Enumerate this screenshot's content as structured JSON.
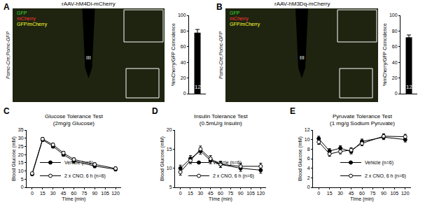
{
  "images": [
    {
      "panel": "A",
      "type": "image",
      "title": "rAAV-hM4Di-mCherry",
      "side_label": "Pomc-Cre;Pomc-GFP",
      "channels": [
        {
          "name": "GFP",
          "color": "#33dd33"
        },
        {
          "name": "mCherry",
          "color": "#ff3333"
        },
        {
          "name": "GFP/mCherry",
          "color": "#ffff33"
        }
      ],
      "region_label": "III"
    },
    {
      "panel": "B",
      "type": "image",
      "title": "rAAV-hM3Dq-mCherry",
      "side_label": "Pomc-Cre;Pomc-GFP",
      "channels": [
        {
          "name": "GFP",
          "color": "#33dd33"
        },
        {
          "name": "mCherry",
          "color": "#ff3333"
        },
        {
          "name": "GFP/mCherry",
          "color": "#ffff33"
        }
      ],
      "region_label": "III"
    }
  ],
  "chart_data": [
    {
      "type": "bar",
      "categories": [
        null
      ],
      "values": [
        78
      ],
      "errors": [
        4
      ],
      "color": "#000000",
      "y_label": "%mCherry/GFP Coincidence",
      "ylim": [
        0,
        100
      ],
      "yticks": [
        0,
        20,
        40,
        60,
        80,
        100
      ],
      "annotations": [
        "12"
      ],
      "tick_labels": "y",
      "grid": false
    },
    {
      "type": "bar",
      "categories": [
        null
      ],
      "values": [
        72
      ],
      "errors": [
        3
      ],
      "color": "#000000",
      "y_label": "%mCherry/GFP Coincidence",
      "ylim": [
        0,
        100
      ],
      "yticks": [
        0,
        20,
        40,
        60,
        80,
        100
      ],
      "annotations": [
        "12"
      ],
      "tick_labels": "y",
      "grid": false
    },
    {
      "panel": "C",
      "type": "line",
      "title": "Glucose Tolerance Test",
      "subtitle": "(2mg/g Glucose)",
      "x_label": "TIme (min)",
      "y_label": "Blood Glucose (mM)",
      "x": [
        0,
        15,
        30,
        45,
        60,
        90,
        120
      ],
      "series": [
        {
          "name": "Vehicle (n=6)",
          "color": "#000000",
          "marker": "filled circle",
          "values": [
            8,
            29,
            25,
            20,
            16,
            13,
            11
          ],
          "errors": [
            0.5,
            1,
            1,
            1,
            1,
            1,
            1
          ]
        },
        {
          "name": "2 x CNO, 6 h (n=6)",
          "color": "#000000",
          "marker": "open circle",
          "values": [
            8.5,
            29.5,
            26,
            21,
            17,
            14,
            11.5
          ],
          "errors": [
            0.5,
            1,
            1,
            1,
            1,
            1,
            1
          ]
        }
      ],
      "xlim": [
        -8,
        128
      ],
      "xticks": [
        0,
        15,
        30,
        45,
        60,
        75,
        90,
        105,
        120
      ],
      "ylim": [
        0,
        35
      ],
      "yticks": [
        0,
        5,
        10,
        15,
        20,
        25,
        30,
        35
      ],
      "legend": "lower left",
      "grid": false
    },
    {
      "panel": "D",
      "type": "line",
      "title": "Insulin Tolerance Test",
      "subtitle": "(0.5mU/g Insulin)",
      "x_label": "TIme (min)",
      "y_label": "Blood Glucose (mM)",
      "x": [
        0,
        15,
        30,
        45,
        60,
        90,
        120
      ],
      "series": [
        {
          "name": "Vehicle (n=6)",
          "color": "#000000",
          "marker": "filled circle",
          "values": [
            10,
            12.5,
            14.5,
            12,
            11,
            10,
            9.5
          ],
          "errors": [
            0.8,
            0.8,
            0.8,
            0.8,
            0.8,
            0.8,
            0.8
          ]
        },
        {
          "name": "2 x CNO, 6 h (n=6)",
          "color": "#000000",
          "marker": "open circle",
          "values": [
            9,
            12,
            15,
            12.5,
            11,
            10.5,
            10.5
          ],
          "errors": [
            0.8,
            0.8,
            0.8,
            0.8,
            0.8,
            0.8,
            0.8
          ]
        }
      ],
      "xlim": [
        -8,
        128
      ],
      "xticks": [
        0,
        15,
        30,
        45,
        60,
        75,
        90,
        105,
        120
      ],
      "ylim": [
        5,
        20
      ],
      "yticks": [
        5,
        10,
        15,
        20
      ],
      "legend": "lower left",
      "grid": false
    },
    {
      "panel": "E",
      "type": "line",
      "title": "Pyruvate Tolerance Test",
      "subtitle": "(1 mg/g Sodium Pyruvate)",
      "x_label": "TIme (min)",
      "y_label": "Blood Glucose (mM)",
      "x": [
        0,
        15,
        30,
        45,
        60,
        90,
        120
      ],
      "series": [
        {
          "name": "Vehicle (n=6)",
          "color": "#000000",
          "marker": "filled circle",
          "values": [
            10.2,
            7.6,
            8.2,
            7.5,
            9.6,
            10.5,
            10
          ],
          "errors": [
            0.5,
            0.5,
            0.5,
            0.5,
            0.5,
            0.5,
            0.5
          ]
        },
        {
          "name": "2 x CNO, 6 h (n=6)",
          "color": "#000000",
          "marker": "open circle",
          "values": [
            9.5,
            7,
            7.5,
            7.8,
            9.2,
            10.7,
            10.6
          ],
          "errors": [
            0.5,
            0.5,
            0.5,
            0.5,
            0.5,
            0.5,
            0.5
          ]
        }
      ],
      "xlim": [
        -8,
        128
      ],
      "xticks": [
        0,
        15,
        30,
        45,
        60,
        75,
        90,
        105,
        120
      ],
      "ylim": [
        0,
        12
      ],
      "yticks": [
        0,
        2,
        4,
        6,
        8,
        10,
        12
      ],
      "legend": "lower right",
      "grid": false
    }
  ]
}
